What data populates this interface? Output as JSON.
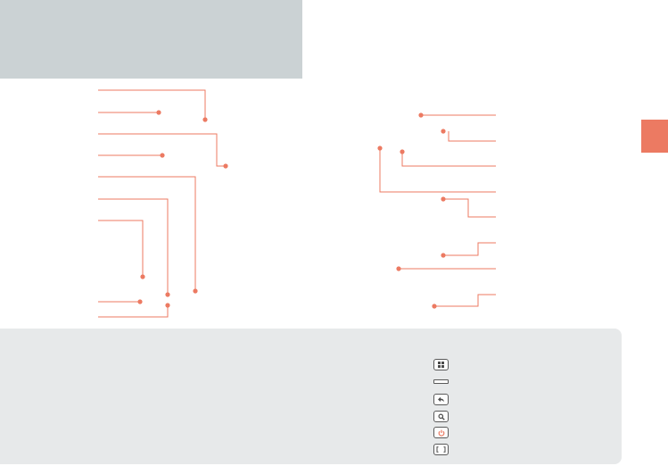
{
  "colors": {
    "accent": "#ec7a62",
    "header_band": "#cbd2d4",
    "footer_panel": "#e7e9ea",
    "key_outline": "#5a5a5a"
  },
  "legend_icons": [
    {
      "name": "apps-grid-icon"
    },
    {
      "name": "bar-icon"
    },
    {
      "name": "back-arrow-icon"
    },
    {
      "name": "search-icon"
    },
    {
      "name": "power-icon",
      "color": "#ec7a62"
    },
    {
      "name": "brackets-icon"
    }
  ]
}
